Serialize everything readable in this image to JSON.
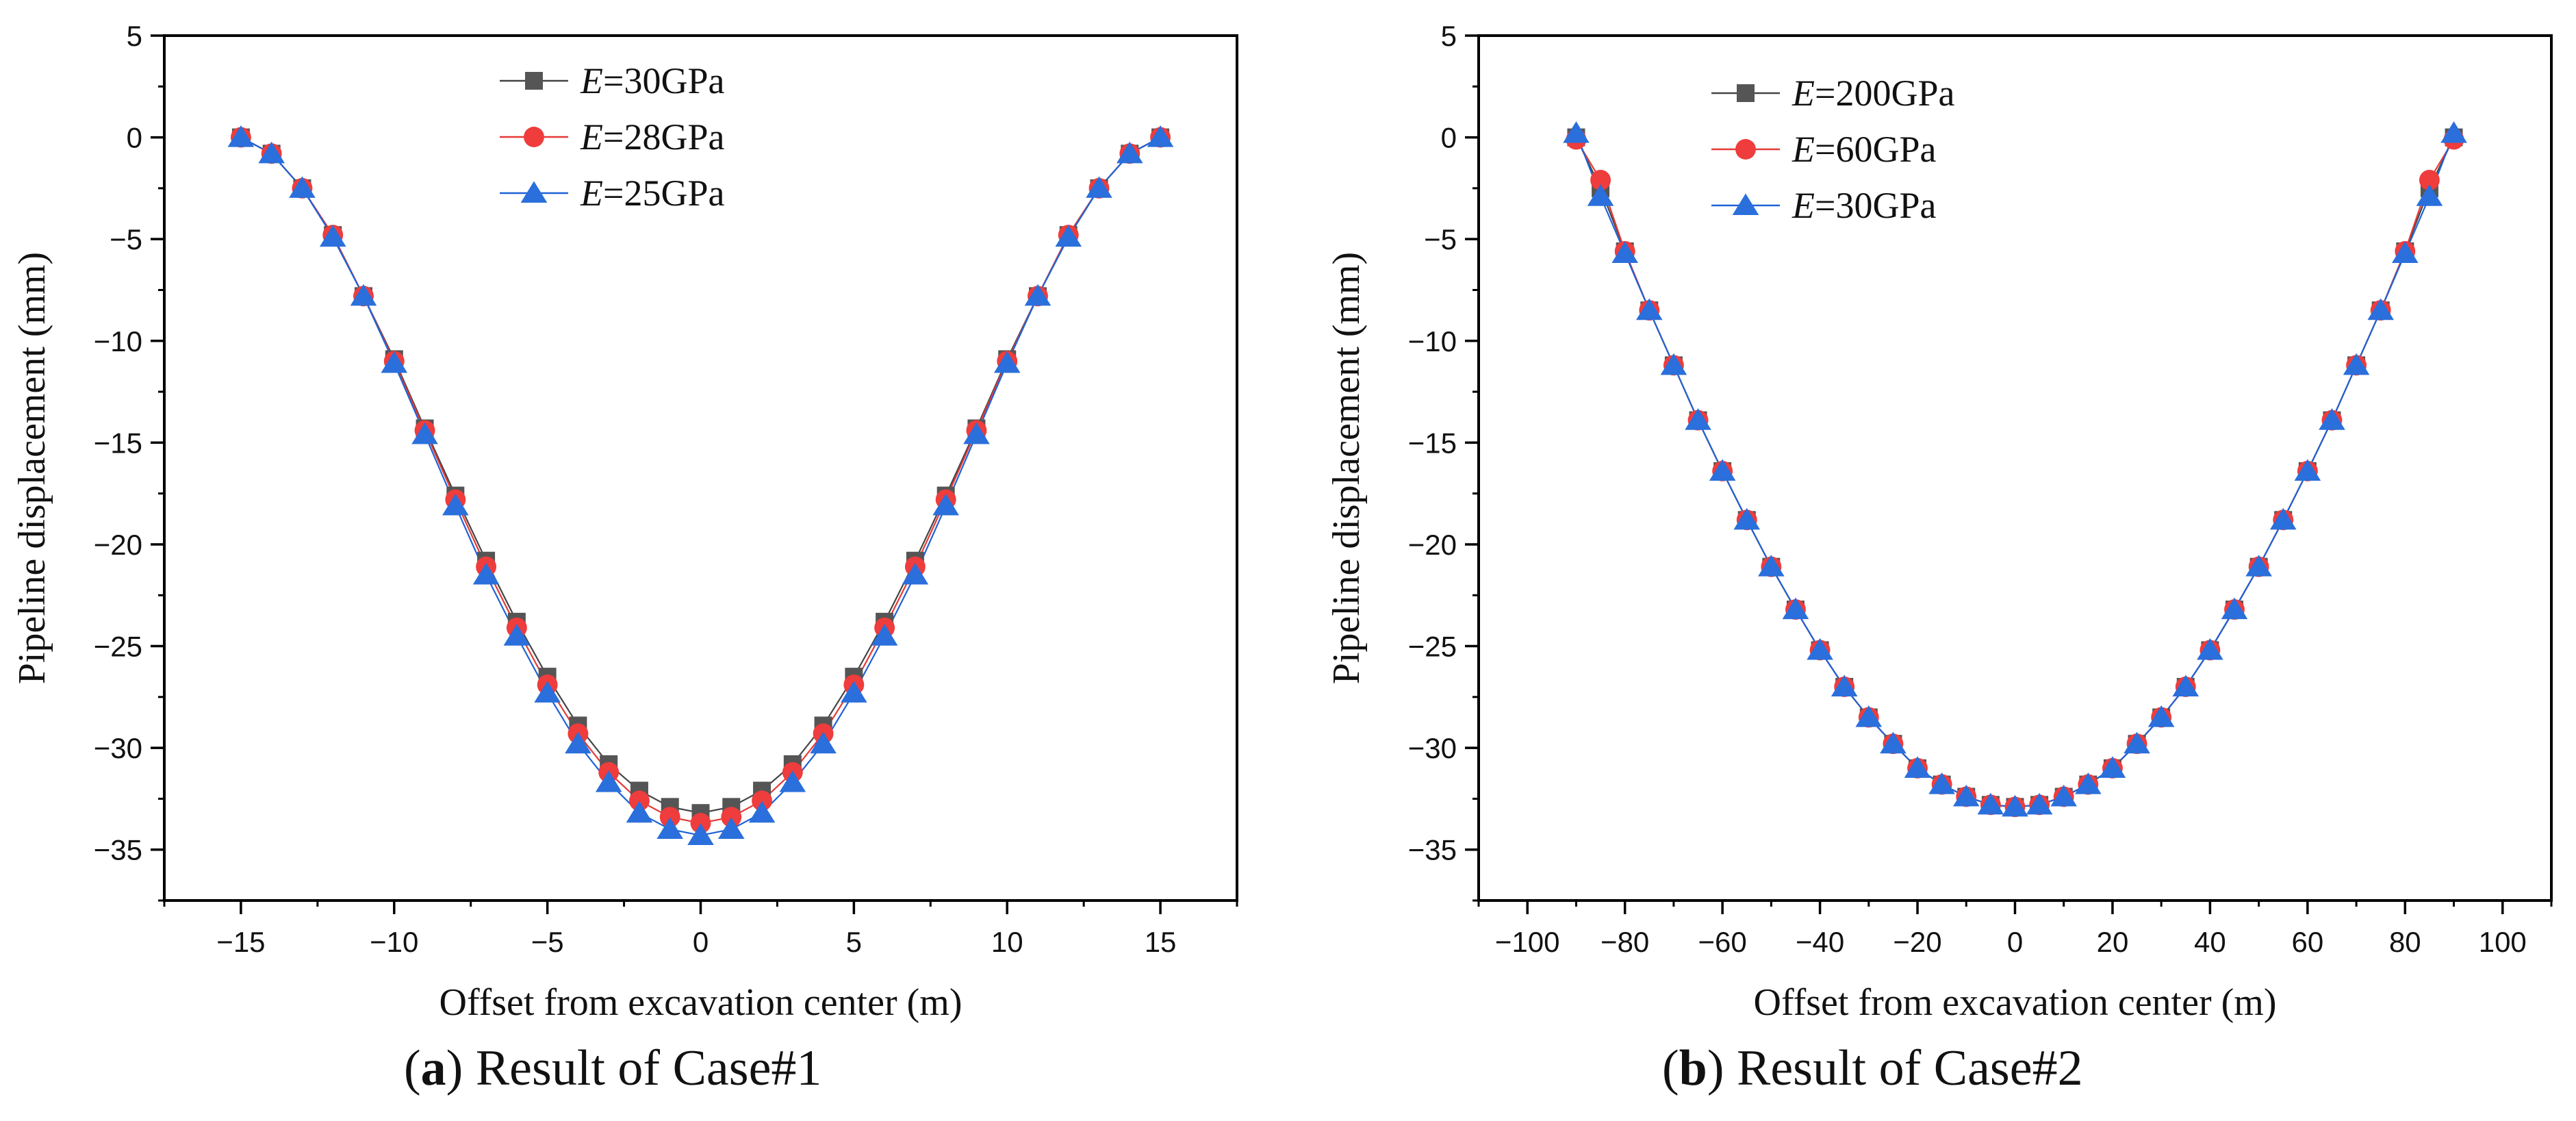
{
  "colors": {
    "series_0": "#555555",
    "series_0_line": "#444444",
    "series_1": "#ef3c3c",
    "series_1_line": "#e53935",
    "series_2": "#2a6fdb",
    "series_2_line": "#1e63d6"
  },
  "chart_data": [
    {
      "type": "line",
      "panel_letter": "a",
      "panel_caption": "Result of Case#1",
      "title": "",
      "xlabel": "Offset from excavation center (m)",
      "ylabel": "Pipeline displacement (mm)",
      "xlim": [
        -17.5,
        17.5
      ],
      "ylim": [
        -37.5,
        5
      ],
      "xticks": [
        -15,
        -10,
        -5,
        0,
        5,
        10,
        15
      ],
      "yticks": [
        5,
        0,
        -5,
        -10,
        -15,
        -20,
        -25,
        -30,
        -35
      ],
      "legend_position": "top-center",
      "x": [
        -15,
        -14,
        -13,
        -12,
        -11,
        -10,
        -9,
        -8,
        -7,
        -6,
        -5,
        -4,
        -3,
        -2,
        -1,
        0,
        1,
        2,
        3,
        4,
        5,
        6,
        7,
        8,
        9,
        10,
        11,
        12,
        13,
        14,
        15
      ],
      "series": [
        {
          "legend_italic": "E",
          "legend_value": "=30GPa",
          "marker": "square",
          "values": [
            0,
            -0.8,
            -2.5,
            -4.8,
            -7.8,
            -10.9,
            -14.3,
            -17.6,
            -20.8,
            -23.8,
            -26.5,
            -28.9,
            -30.8,
            -32.1,
            -32.9,
            -33.2,
            -32.9,
            -32.1,
            -30.8,
            -28.9,
            -26.5,
            -23.8,
            -20.8,
            -17.6,
            -14.3,
            -10.9,
            -7.8,
            -4.8,
            -2.5,
            -0.8,
            0
          ]
        },
        {
          "legend_italic": "E",
          "legend_value": "=28GPa",
          "marker": "circle",
          "values": [
            0,
            -0.8,
            -2.5,
            -4.8,
            -7.8,
            -11.0,
            -14.4,
            -17.8,
            -21.1,
            -24.1,
            -26.9,
            -29.3,
            -31.2,
            -32.6,
            -33.4,
            -33.7,
            -33.4,
            -32.6,
            -31.2,
            -29.3,
            -26.9,
            -24.1,
            -21.1,
            -17.8,
            -14.4,
            -11.0,
            -7.8,
            -4.8,
            -2.5,
            -0.8,
            0
          ]
        },
        {
          "legend_italic": "E",
          "legend_value": "=25GPa",
          "marker": "triangle",
          "values": [
            0,
            -0.8,
            -2.5,
            -4.9,
            -7.8,
            -11.1,
            -14.6,
            -18.1,
            -21.5,
            -24.5,
            -27.3,
            -29.8,
            -31.7,
            -33.2,
            -34.0,
            -34.3,
            -34.0,
            -33.2,
            -31.7,
            -29.8,
            -27.3,
            -24.5,
            -21.5,
            -18.1,
            -14.6,
            -11.1,
            -7.8,
            -4.9,
            -2.5,
            -0.8,
            0
          ]
        }
      ]
    },
    {
      "type": "line",
      "panel_letter": "b",
      "panel_caption": "Result of Case#2",
      "title": "",
      "xlabel": "Offset from excavation center (m)",
      "ylabel": "Pipeline displacement (mm)",
      "xlim": [
        -110,
        110
      ],
      "ylim": [
        -37.5,
        5
      ],
      "xticks": [
        -100,
        -80,
        -60,
        -40,
        -20,
        0,
        20,
        40,
        60,
        80,
        100
      ],
      "yticks": [
        5,
        0,
        -5,
        -10,
        -15,
        -20,
        -25,
        -30,
        -35
      ],
      "legend_position": "top-left",
      "x": [
        -90,
        -85,
        -80,
        -75,
        -70,
        -65,
        -60,
        -55,
        -50,
        -45,
        -40,
        -35,
        -30,
        -25,
        -20,
        -15,
        -10,
        -5,
        0,
        5,
        10,
        15,
        20,
        25,
        30,
        35,
        40,
        45,
        50,
        55,
        60,
        65,
        70,
        75,
        80,
        85,
        90
      ],
      "series": [
        {
          "legend_italic": "E",
          "legend_value": "=200GPa",
          "marker": "square",
          "values": [
            0,
            -2.5,
            -5.6,
            -8.5,
            -11.2,
            -13.9,
            -16.4,
            -18.8,
            -21.1,
            -23.2,
            -25.2,
            -27.0,
            -28.5,
            -29.8,
            -31.0,
            -31.8,
            -32.4,
            -32.8,
            -32.9,
            -32.8,
            -32.4,
            -31.8,
            -31.0,
            -29.8,
            -28.5,
            -27.0,
            -25.2,
            -23.2,
            -21.1,
            -18.8,
            -16.4,
            -13.9,
            -11.2,
            -8.5,
            -5.6,
            -2.5,
            0
          ]
        },
        {
          "legend_italic": "E",
          "legend_value": "=60GPa",
          "marker": "circle",
          "values": [
            -0.1,
            -2.1,
            -5.6,
            -8.5,
            -11.2,
            -13.9,
            -16.4,
            -18.8,
            -21.1,
            -23.2,
            -25.2,
            -27.0,
            -28.5,
            -29.8,
            -31.0,
            -31.8,
            -32.4,
            -32.8,
            -32.9,
            -32.8,
            -32.4,
            -31.8,
            -31.0,
            -29.8,
            -28.5,
            -27.0,
            -25.2,
            -23.2,
            -21.1,
            -18.8,
            -16.4,
            -13.9,
            -11.2,
            -8.5,
            -5.6,
            -2.1,
            -0.1
          ]
        },
        {
          "legend_italic": "E",
          "legend_value": "=30GPa",
          "marker": "triangle",
          "values": [
            0.2,
            -2.9,
            -5.7,
            -8.5,
            -11.2,
            -13.9,
            -16.4,
            -18.8,
            -21.1,
            -23.2,
            -25.2,
            -27.0,
            -28.5,
            -29.8,
            -31.0,
            -31.8,
            -32.4,
            -32.8,
            -32.9,
            -32.8,
            -32.4,
            -31.8,
            -31.0,
            -29.8,
            -28.5,
            -27.0,
            -25.2,
            -23.2,
            -21.1,
            -18.8,
            -16.4,
            -13.9,
            -11.2,
            -8.5,
            -5.7,
            -2.9,
            0.2
          ]
        }
      ]
    }
  ]
}
